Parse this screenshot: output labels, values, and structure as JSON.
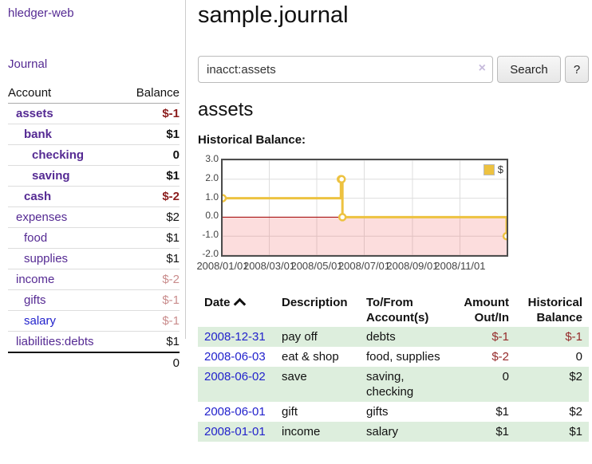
{
  "colors": {
    "link_purple": "#552a93",
    "link_blue": "#2222cc",
    "negative_strong": "#8b1d1d",
    "negative": "#952b2b",
    "negative_muted": "#c98c8c",
    "row_green": "#ddeedd",
    "chart_line": "#edc240",
    "chart_negative_fill": "#ee5555",
    "chart_zero_line": "#a40000"
  },
  "sidebar": {
    "brand": "hledger-web",
    "journal_link": "Journal",
    "accounts": {
      "account_header": "Account",
      "balance_header": "Balance",
      "rows": [
        {
          "name": "assets",
          "balance": "$-1"
        },
        {
          "name": "bank",
          "balance": "$1"
        },
        {
          "name": "checking",
          "balance": "0"
        },
        {
          "name": "saving",
          "balance": "$1"
        },
        {
          "name": "cash",
          "balance": "$-2"
        },
        {
          "name": "expenses",
          "balance": "$2"
        },
        {
          "name": "food",
          "balance": "$1"
        },
        {
          "name": "supplies",
          "balance": "$1"
        },
        {
          "name": "income",
          "balance": "$-2"
        },
        {
          "name": "gifts",
          "balance": "$-1"
        },
        {
          "name": "salary",
          "balance": "$-1"
        },
        {
          "name": "liabilities:debts",
          "balance": "$1"
        }
      ],
      "total": "0"
    }
  },
  "main": {
    "title": "sample.journal",
    "search": {
      "value": "inacct:assets",
      "clear_icon": "×",
      "search_label": "Search",
      "help_label": "?"
    },
    "account_heading": "assets",
    "section_label": "Historical Balance:"
  },
  "chart_data": {
    "type": "line",
    "steps": true,
    "title": "Historical Balance:",
    "x_range": [
      "2008-01-01",
      "2008-12-31"
    ],
    "ylim": [
      -2,
      3
    ],
    "y_ticks": [
      "3.0",
      "2.0",
      "1.0",
      "0.0",
      "-1.0",
      "-2.0"
    ],
    "x_ticks": [
      {
        "date": "2008-01-01",
        "label": "2008/01/01"
      },
      {
        "date": "2008-03-01",
        "label": "2008/03/01"
      },
      {
        "date": "2008-05-01",
        "label": "2008/05/01"
      },
      {
        "date": "2008-07-01",
        "label": "2008/07/01"
      },
      {
        "date": "2008-09-01",
        "label": "2008/09/01"
      },
      {
        "date": "2008-11-01",
        "label": "2008/11/01"
      }
    ],
    "series": [
      {
        "name": "$",
        "color": "#edc240",
        "points": [
          {
            "date": "2008-01-01",
            "value": 1
          },
          {
            "date": "2008-06-01",
            "value": 2
          },
          {
            "date": "2008-06-02",
            "value": 2
          },
          {
            "date": "2008-06-03",
            "value": 0
          },
          {
            "date": "2008-12-31",
            "value": -1
          }
        ]
      }
    ],
    "legend": {
      "label": "$",
      "position": "top-right"
    },
    "grid": true,
    "negative_region_highlighted": true
  },
  "register": {
    "sort_icon": "chevron-up",
    "headers": {
      "date": "Date",
      "description": "Description",
      "accounts": "To/From Account(s)",
      "amount": "Amount Out/In",
      "balance": "Historical Balance"
    },
    "rows": [
      {
        "date": "2008-12-31",
        "description": "pay off",
        "accounts": "debts",
        "amount": "$-1",
        "balance": "$-1"
      },
      {
        "date": "2008-06-03",
        "description": "eat & shop",
        "accounts": "food, supplies",
        "amount": "$-2",
        "balance": "0"
      },
      {
        "date": "2008-06-02",
        "description": "save",
        "accounts": "saving, checking",
        "amount": "0",
        "balance": "$2"
      },
      {
        "date": "2008-06-01",
        "description": "gift",
        "accounts": "gifts",
        "amount": "$1",
        "balance": "$2"
      },
      {
        "date": "2008-01-01",
        "description": "income",
        "accounts": "salary",
        "amount": "$1",
        "balance": "$1"
      }
    ]
  }
}
